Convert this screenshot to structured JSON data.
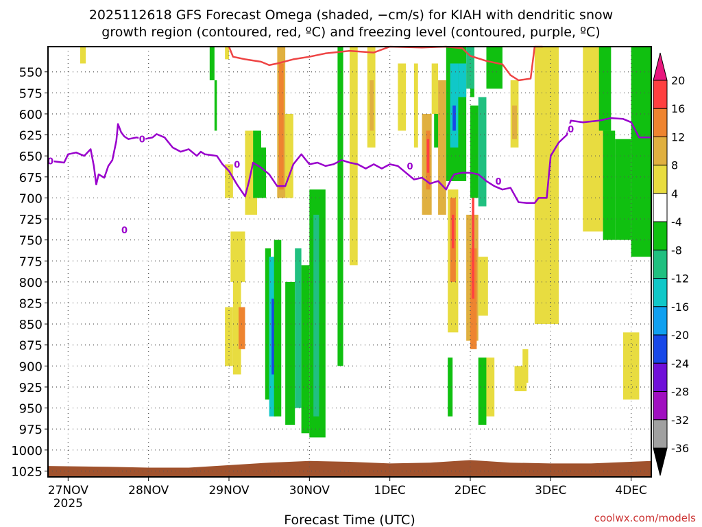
{
  "chart_data": {
    "type": "heatmap",
    "title_line1": "2025112618 GFS Forecast Omega (shaded, −cm/s) for KIAH with dendritic snow",
    "title_line2": "growth region (contoured, red, ºC) and freezing level (contoured, purple, ºC)",
    "xlabel": "Forecast Time (UTC)",
    "credit": "coolwx.com/models",
    "x_ticks": [
      "27NOV",
      "28NOV",
      "29NOV",
      "30NOV",
      "1DEC",
      "2DEC",
      "3DEC",
      "4DEC"
    ],
    "x_year_label": "2025",
    "xlim_days": [
      -0.25,
      7.25
    ],
    "y_ticks": [
      550,
      575,
      600,
      625,
      650,
      675,
      700,
      725,
      750,
      775,
      800,
      825,
      850,
      875,
      900,
      925,
      950,
      975,
      1000,
      1025
    ],
    "ylim_hpa": [
      1032,
      520
    ],
    "colorbar_labels": [
      20,
      16,
      12,
      8,
      4,
      -4,
      -8,
      -12,
      -16,
      -20,
      -24,
      -28,
      -32,
      -36
    ],
    "colorbar_colors": [
      "#e8177d",
      "#ff4040",
      "#ee8430",
      "#e0b040",
      "#e8dc40",
      "#ffffff",
      "#10c010",
      "#20c080",
      "#10c8c8",
      "#10a0f0",
      "#1848e8",
      "#7010d8",
      "#a010c0",
      "#a0a0a0",
      "#000000"
    ],
    "series": [
      {
        "name": "",
        "color": "#9900cc",
        "points": [
          [
            -0.22,
            656
          ],
          [
            -0.05,
            658
          ],
          [
            0.0,
            648
          ],
          [
            0.1,
            646
          ],
          [
            0.2,
            650
          ],
          [
            0.28,
            642
          ],
          [
            0.32,
            662
          ],
          [
            0.35,
            684
          ],
          [
            0.38,
            672
          ],
          [
            0.45,
            676
          ],
          [
            0.5,
            662
          ],
          [
            0.55,
            655
          ],
          [
            0.6,
            632
          ],
          [
            0.62,
            612
          ],
          [
            0.66,
            622
          ],
          [
            0.7,
            627
          ],
          [
            0.75,
            630
          ],
          [
            0.85,
            628
          ],
          [
            0.95,
            630
          ],
          [
            1.05,
            628
          ],
          [
            1.1,
            624
          ],
          [
            1.2,
            628
          ],
          [
            1.3,
            640
          ],
          [
            1.4,
            645
          ],
          [
            1.5,
            642
          ],
          [
            1.6,
            650
          ],
          [
            1.65,
            645
          ],
          [
            1.7,
            648
          ],
          [
            1.85,
            650
          ],
          [
            1.92,
            660
          ],
          [
            2.0,
            668
          ],
          [
            2.1,
            684
          ],
          [
            2.2,
            698
          ],
          [
            2.25,
            680
          ],
          [
            2.3,
            658
          ],
          [
            2.4,
            664
          ],
          [
            2.5,
            672
          ],
          [
            2.6,
            686
          ],
          [
            2.7,
            686
          ],
          [
            2.8,
            660
          ],
          [
            2.9,
            648
          ],
          [
            3.0,
            660
          ],
          [
            3.1,
            658
          ],
          [
            3.2,
            662
          ],
          [
            3.3,
            660
          ],
          [
            3.4,
            655
          ],
          [
            3.5,
            658
          ],
          [
            3.6,
            660
          ],
          [
            3.7,
            665
          ],
          [
            3.8,
            660
          ],
          [
            3.9,
            665
          ],
          [
            4.0,
            660
          ],
          [
            4.1,
            662
          ],
          [
            4.2,
            670
          ],
          [
            4.3,
            678
          ],
          [
            4.4,
            676
          ],
          [
            4.5,
            683
          ],
          [
            4.6,
            680
          ],
          [
            4.7,
            690
          ],
          [
            4.75,
            680
          ],
          [
            4.8,
            672
          ],
          [
            4.9,
            670
          ],
          [
            5.0,
            670
          ],
          [
            5.1,
            672
          ],
          [
            5.2,
            680
          ],
          [
            5.3,
            686
          ],
          [
            5.4,
            690
          ],
          [
            5.5,
            688
          ],
          [
            5.6,
            705
          ],
          [
            5.7,
            706
          ],
          [
            5.8,
            706
          ],
          [
            5.85,
            700
          ],
          [
            5.95,
            700
          ],
          [
            6.0,
            650
          ],
          [
            6.1,
            634
          ],
          [
            6.2,
            625
          ],
          [
            6.25,
            608
          ],
          [
            6.4,
            610
          ],
          [
            6.6,
            608
          ],
          [
            6.75,
            605
          ],
          [
            6.9,
            606
          ],
          [
            7.0,
            610
          ],
          [
            7.1,
            628
          ],
          [
            7.25,
            628
          ]
        ]
      },
      {
        "name": "",
        "color": "#ee4444",
        "points": [
          [
            2.0,
            520
          ],
          [
            2.05,
            532
          ],
          [
            2.2,
            535
          ],
          [
            2.4,
            538
          ],
          [
            2.5,
            542
          ],
          [
            2.6,
            540
          ],
          [
            2.8,
            535
          ],
          [
            3.0,
            532
          ],
          [
            3.2,
            528
          ],
          [
            3.5,
            525
          ],
          [
            3.8,
            527
          ],
          [
            4.0,
            520
          ],
          [
            4.4,
            521
          ],
          [
            4.7,
            520
          ],
          [
            4.9,
            522
          ],
          [
            5.0,
            531
          ],
          [
            5.2,
            537
          ],
          [
            5.4,
            541
          ],
          [
            5.5,
            554
          ],
          [
            5.6,
            560
          ],
          [
            5.75,
            558
          ],
          [
            5.8,
            520
          ],
          [
            5.9,
            520
          ]
        ]
      }
    ],
    "shaded_regions": [
      {
        "color": "#e8dc40",
        "x": [
          0.15,
          0.22
        ],
        "y": [
          520,
          540
        ]
      },
      {
        "color": "#e8dc40",
        "x": [
          1.95,
          2.0
        ],
        "y": [
          520,
          535
        ]
      },
      {
        "color": "#e8dc40",
        "x": [
          1.95,
          2.05
        ],
        "y": [
          660,
          700
        ]
      },
      {
        "color": "#e8dc40",
        "x": [
          1.95,
          2.05
        ],
        "y": [
          830,
          900
        ]
      },
      {
        "color": "#e8dc40",
        "x": [
          2.02,
          2.2
        ],
        "y": [
          740,
          800
        ]
      },
      {
        "color": "#e8dc40",
        "x": [
          2.05,
          2.15
        ],
        "y": [
          800,
          910
        ]
      },
      {
        "color": "#ee8430",
        "x": [
          2.12,
          2.2
        ],
        "y": [
          830,
          880
        ]
      },
      {
        "color": "#e8dc40",
        "x": [
          2.2,
          2.35
        ],
        "y": [
          620,
          720
        ]
      },
      {
        "color": "#e8dc40",
        "x": [
          2.6,
          2.8
        ],
        "y": [
          600,
          700
        ]
      },
      {
        "color": "#e0b040",
        "x": [
          2.6,
          2.7
        ],
        "y": [
          520,
          700
        ]
      },
      {
        "color": "#ee8430",
        "x": [
          2.62,
          2.68
        ],
        "y": [
          540,
          690
        ]
      },
      {
        "color": "#10c010",
        "x": [
          1.76,
          1.82
        ],
        "y": [
          520,
          560
        ]
      },
      {
        "color": "#10c010",
        "x": [
          1.82,
          1.85
        ],
        "y": [
          560,
          620
        ]
      },
      {
        "color": "#10c010",
        "x": [
          2.3,
          2.4
        ],
        "y": [
          620,
          700
        ]
      },
      {
        "color": "#10c010",
        "x": [
          2.38,
          2.46
        ],
        "y": [
          640,
          700
        ]
      },
      {
        "color": "#10c010",
        "x": [
          2.45,
          2.52
        ],
        "y": [
          760,
          940
        ]
      },
      {
        "color": "#10c8c8",
        "x": [
          2.5,
          2.58
        ],
        "y": [
          770,
          960
        ]
      },
      {
        "color": "#1848e8",
        "x": [
          2.53,
          2.58
        ],
        "y": [
          820,
          910
        ]
      },
      {
        "color": "#10c010",
        "x": [
          2.56,
          2.65
        ],
        "y": [
          750,
          960
        ]
      },
      {
        "color": "#10c010",
        "x": [
          2.7,
          2.82
        ],
        "y": [
          800,
          970
        ]
      },
      {
        "color": "#20c080",
        "x": [
          2.82,
          2.9
        ],
        "y": [
          760,
          950
        ]
      },
      {
        "color": "#10c010",
        "x": [
          2.9,
          3.0
        ],
        "y": [
          780,
          980
        ]
      },
      {
        "color": "#10c010",
        "x": [
          3.0,
          3.2
        ],
        "y": [
          690,
          985
        ]
      },
      {
        "color": "#20c080",
        "x": [
          3.05,
          3.12
        ],
        "y": [
          720,
          960
        ]
      },
      {
        "color": "#10c010",
        "x": [
          3.35,
          3.42
        ],
        "y": [
          520,
          900
        ]
      },
      {
        "color": "#e8dc40",
        "x": [
          3.5,
          3.6
        ],
        "y": [
          520,
          780
        ]
      },
      {
        "color": "#e8dc40",
        "x": [
          3.72,
          3.82
        ],
        "y": [
          520,
          640
        ]
      },
      {
        "color": "#e0b040",
        "x": [
          3.75,
          3.8
        ],
        "y": [
          560,
          620
        ]
      },
      {
        "color": "#e8dc40",
        "x": [
          4.1,
          4.2
        ],
        "y": [
          540,
          620
        ]
      },
      {
        "color": "#e8dc40",
        "x": [
          4.3,
          4.35
        ],
        "y": [
          540,
          640
        ]
      },
      {
        "color": "#e0b040",
        "x": [
          4.4,
          4.52
        ],
        "y": [
          600,
          720
        ]
      },
      {
        "color": "#ee8430",
        "x": [
          4.45,
          4.5
        ],
        "y": [
          620,
          690
        ]
      },
      {
        "color": "#ff4040",
        "x": [
          4.46,
          4.49
        ],
        "y": [
          630,
          670
        ]
      },
      {
        "color": "#e8dc40",
        "x": [
          4.52,
          4.6
        ],
        "y": [
          540,
          600
        ]
      },
      {
        "color": "#10c010",
        "x": [
          4.55,
          4.62
        ],
        "y": [
          600,
          640
        ]
      },
      {
        "color": "#e0b040",
        "x": [
          4.6,
          4.7
        ],
        "y": [
          560,
          720
        ]
      },
      {
        "color": "#10c010",
        "x": [
          4.7,
          4.95
        ],
        "y": [
          520,
          680
        ]
      },
      {
        "color": "#10c8c8",
        "x": [
          4.75,
          4.85
        ],
        "y": [
          540,
          640
        ]
      },
      {
        "color": "#1848e8",
        "x": [
          4.78,
          4.82
        ],
        "y": [
          590,
          620
        ]
      },
      {
        "color": "#e8dc40",
        "x": [
          4.72,
          4.85
        ],
        "y": [
          690,
          860
        ]
      },
      {
        "color": "#ee8430",
        "x": [
          4.75,
          4.82
        ],
        "y": [
          700,
          800
        ]
      },
      {
        "color": "#ff4040",
        "x": [
          4.77,
          4.8
        ],
        "y": [
          720,
          760
        ]
      },
      {
        "color": "#10c010",
        "x": [
          4.72,
          4.78
        ],
        "y": [
          890,
          960
        ]
      },
      {
        "color": "#10c8c8",
        "x": [
          4.85,
          4.95
        ],
        "y": [
          540,
          580
        ]
      },
      {
        "color": "#e0b040",
        "x": [
          4.95,
          5.1
        ],
        "y": [
          720,
          870
        ]
      },
      {
        "color": "#ee8430",
        "x": [
          5.0,
          5.08
        ],
        "y": [
          760,
          880
        ]
      },
      {
        "color": "#ff4040",
        "x": [
          5.02,
          5.05
        ],
        "y": [
          680,
          820
        ]
      },
      {
        "color": "#e8dc40",
        "x": [
          5.1,
          5.22
        ],
        "y": [
          770,
          840
        ]
      },
      {
        "color": "#10c010",
        "x": [
          5.0,
          5.05
        ],
        "y": [
          520,
          580
        ]
      },
      {
        "color": "#20c080",
        "x": [
          4.95,
          5.05
        ],
        "y": [
          520,
          570
        ]
      },
      {
        "color": "#10c010",
        "x": [
          5.0,
          5.1
        ],
        "y": [
          590,
          700
        ]
      },
      {
        "color": "#20c080",
        "x": [
          5.1,
          5.2
        ],
        "y": [
          580,
          710
        ]
      },
      {
        "color": "#10c010",
        "x": [
          5.1,
          5.2
        ],
        "y": [
          890,
          970
        ]
      },
      {
        "color": "#e8dc40",
        "x": [
          5.2,
          5.3
        ],
        "y": [
          890,
          960
        ]
      },
      {
        "color": "#10c010",
        "x": [
          5.2,
          5.4
        ],
        "y": [
          520,
          570
        ]
      },
      {
        "color": "#e8dc40",
        "x": [
          5.5,
          5.6
        ],
        "y": [
          560,
          640
        ]
      },
      {
        "color": "#e0b040",
        "x": [
          5.52,
          5.58
        ],
        "y": [
          590,
          630
        ]
      },
      {
        "color": "#e8dc40",
        "x": [
          5.55,
          5.7
        ],
        "y": [
          900,
          930
        ]
      },
      {
        "color": "#e8dc40",
        "x": [
          5.65,
          5.72
        ],
        "y": [
          880,
          920
        ]
      },
      {
        "color": "#e8dc40",
        "x": [
          5.8,
          6.1
        ],
        "y": [
          520,
          850
        ]
      },
      {
        "color": "#e8dc40",
        "x": [
          6.4,
          6.65
        ],
        "y": [
          520,
          740
        ]
      },
      {
        "color": "#10c010",
        "x": [
          6.6,
          6.75
        ],
        "y": [
          520,
          620
        ]
      },
      {
        "color": "#10c010",
        "x": [
          6.65,
          6.8
        ],
        "y": [
          620,
          750
        ]
      },
      {
        "color": "#10c010",
        "x": [
          6.8,
          7.0
        ],
        "y": [
          630,
          750
        ]
      },
      {
        "color": "#10c010",
        "x": [
          7.0,
          7.25
        ],
        "y": [
          520,
          770
        ]
      },
      {
        "color": "#e8dc40",
        "x": [
          6.9,
          7.1
        ],
        "y": [
          860,
          940
        ]
      }
    ],
    "contour_labels": [
      {
        "text": "0",
        "color": "#9900cc",
        "x": -0.22,
        "y": 656
      },
      {
        "text": "0",
        "color": "#9900cc",
        "x": 0.92,
        "y": 630
      },
      {
        "text": "0",
        "color": "#9900cc",
        "x": 2.1,
        "y": 660
      },
      {
        "text": "0",
        "color": "#9900cc",
        "x": 4.25,
        "y": 662
      },
      {
        "text": "0",
        "color": "#9900cc",
        "x": 5.35,
        "y": 680
      },
      {
        "text": "0",
        "color": "#9900cc",
        "x": 6.25,
        "y": 618
      },
      {
        "text": "0",
        "color": "#9900cc",
        "x": 0.7,
        "y": 738
      }
    ],
    "surface_terrain_hpa": [
      [
        -0.25,
        1019
      ],
      [
        0.5,
        1020
      ],
      [
        1.0,
        1021
      ],
      [
        1.5,
        1021
      ],
      [
        2.0,
        1018
      ],
      [
        2.5,
        1015
      ],
      [
        3.0,
        1013
      ],
      [
        3.5,
        1014
      ],
      [
        4.0,
        1016
      ],
      [
        4.5,
        1015
      ],
      [
        5.0,
        1012
      ],
      [
        5.5,
        1015
      ],
      [
        6.0,
        1016
      ],
      [
        6.5,
        1016
      ],
      [
        7.25,
        1013
      ]
    ],
    "terrain_color": "#a0522d"
  }
}
